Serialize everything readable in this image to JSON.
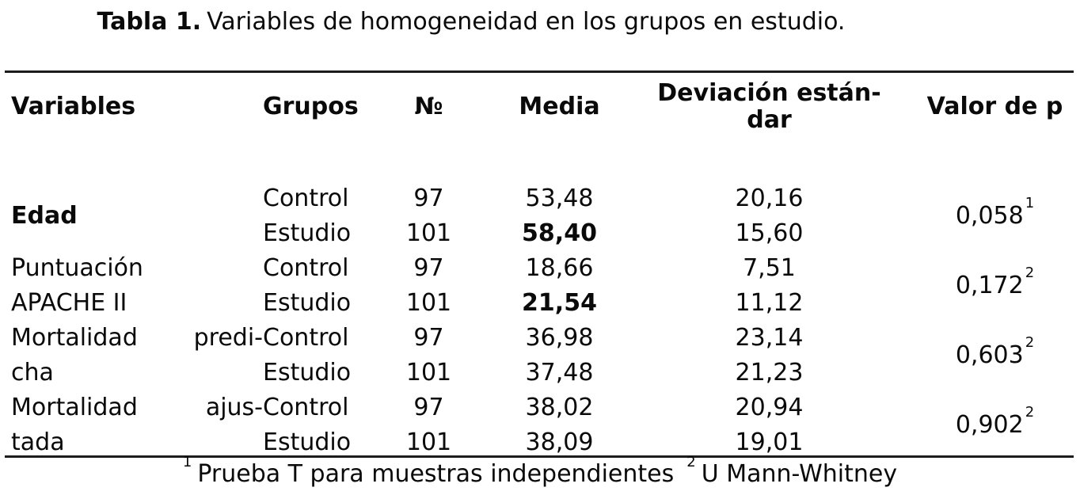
{
  "title": {
    "prefix": "Tabla 1.",
    "text": "Variables de homogeneidad en los grupos en estudio."
  },
  "table": {
    "columns": [
      {
        "label": "Variables"
      },
      {
        "label": "Grupos"
      },
      {
        "label": "№"
      },
      {
        "label": "Media"
      },
      {
        "label": "Deviación estándar",
        "label_lines": [
          "Deviación están-",
          "dar"
        ]
      },
      {
        "label": "Valor de p"
      }
    ],
    "groups": [
      {
        "variable_lines": [
          {
            "text": "Edad"
          }
        ],
        "variable_bold": true,
        "rows": [
          {
            "grupo": "Control",
            "n": "97",
            "media": "53,48",
            "media_bold": false,
            "sd": "20,16"
          },
          {
            "grupo": "Estudio",
            "n": "101",
            "media": "58,40",
            "media_bold": true,
            "sd": "15,60"
          }
        ],
        "p": {
          "value": "0,058",
          "sup": "1"
        }
      },
      {
        "variable_lines": [
          {
            "text": "Puntuación"
          },
          {
            "text": "APACHE II"
          }
        ],
        "variable_bold": false,
        "rows": [
          {
            "grupo": "Control",
            "n": "97",
            "media": "18,66",
            "media_bold": false,
            "sd": "7,51"
          },
          {
            "grupo": "Estudio",
            "n": "101",
            "media": "21,54",
            "media_bold": true,
            "sd": "11,12"
          }
        ],
        "p": {
          "value": "0,172",
          "sup": "2"
        }
      },
      {
        "variable_lines": [
          {
            "text": "Mortalidad predi-",
            "justify": true
          },
          {
            "text": "cha"
          }
        ],
        "variable_bold": false,
        "rows": [
          {
            "grupo": "Control",
            "n": "97",
            "media": "36,98",
            "media_bold": false,
            "sd": "23,14"
          },
          {
            "grupo": "Estudio",
            "n": "101",
            "media": "37,48",
            "media_bold": false,
            "sd": "21,23"
          }
        ],
        "p": {
          "value": "0,603",
          "sup": "2"
        }
      },
      {
        "variable_lines": [
          {
            "text": "Mortalidad ajus-",
            "justify": true
          },
          {
            "text": "tada"
          }
        ],
        "variable_bold": false,
        "rows": [
          {
            "grupo": "Control",
            "n": "97",
            "media": "38,02",
            "media_bold": false,
            "sd": "20,94"
          },
          {
            "grupo": "Estudio",
            "n": "101",
            "media": "38,09",
            "media_bold": false,
            "sd": "19,01"
          }
        ],
        "p": {
          "value": "0,902",
          "sup": "2"
        }
      }
    ]
  },
  "footnote": {
    "items": [
      {
        "sup": "1",
        "text": "Prueba T para muestras independientes"
      },
      {
        "sup": "2",
        "text": "U Mann-Whitney"
      }
    ]
  },
  "colors": {
    "text": "#0a0a0a",
    "rule": "#1c1c1c",
    "background": "#ffffff"
  }
}
